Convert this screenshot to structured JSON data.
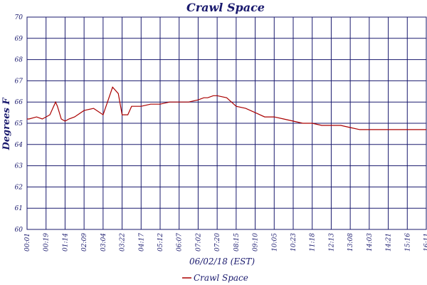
{
  "chart_data": {
    "type": "line",
    "title": "Crawl Space",
    "xlabel": "06/02/18 (EST)",
    "ylabel": "Degrees F",
    "ylim": [
      60,
      70
    ],
    "yticks": [
      "60",
      "61",
      "62",
      "63",
      "64",
      "65",
      "66",
      "67",
      "68",
      "69",
      "70"
    ],
    "x_ticks": [
      "00:01",
      "00:19",
      "01:14",
      "02:09",
      "03:04",
      "03:22",
      "04:17",
      "05:12",
      "06:07",
      "07:02",
      "07:20",
      "08:15",
      "09:10",
      "10:05",
      "10:23",
      "11:18",
      "12:13",
      "13:08",
      "14:03",
      "14:21",
      "15:16",
      "16:11"
    ],
    "grid": true,
    "legend_position": "bottom-left",
    "colors": {
      "series": "#aa0000",
      "grid": "#1a1a6e",
      "text": "#1a1a6e"
    },
    "series": [
      {
        "name": "Crawl Space",
        "x": [
          0,
          0.1,
          0.5,
          0.8,
          1,
          1.2,
          1.5,
          1.6,
          1.8,
          2,
          2.2,
          2.5,
          3,
          3.5,
          4,
          4.5,
          4.8,
          5,
          5.3,
          5.5,
          6,
          6.5,
          7,
          7.5,
          8,
          8.5,
          9,
          9.3,
          9.5,
          9.8,
          10,
          10.5,
          11,
          11.5,
          12,
          12.5,
          13,
          13.5,
          14,
          14.5,
          15,
          15.5,
          16,
          16.5,
          17,
          17.5,
          18,
          18.5,
          19,
          19.5,
          20,
          20.5,
          21
        ],
        "y": [
          65.2,
          65.2,
          65.3,
          65.2,
          65.3,
          65.4,
          66.0,
          65.8,
          65.2,
          65.1,
          65.2,
          65.3,
          65.6,
          65.7,
          65.4,
          66.7,
          66.4,
          65.4,
          65.4,
          65.8,
          65.8,
          65.9,
          65.9,
          66.0,
          66.0,
          66.0,
          66.1,
          66.2,
          66.2,
          66.3,
          66.3,
          66.2,
          65.8,
          65.7,
          65.5,
          65.3,
          65.3,
          65.2,
          65.1,
          65.0,
          65.0,
          64.9,
          64.9,
          64.9,
          64.8,
          64.7,
          64.7,
          64.7,
          64.7,
          64.7,
          64.7,
          64.7,
          64.7
        ]
      }
    ]
  }
}
